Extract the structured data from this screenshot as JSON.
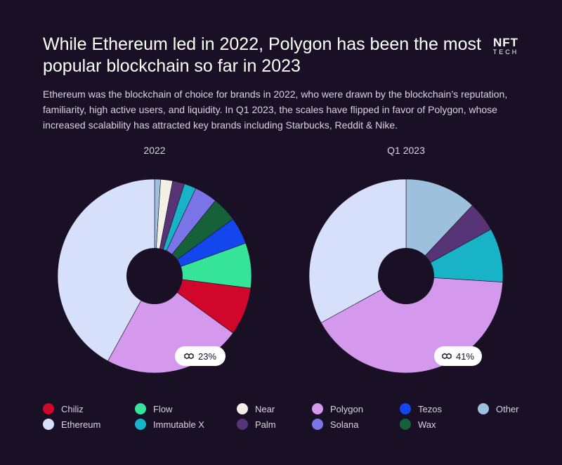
{
  "header": {
    "title": "While Ethereum led in 2022, Polygon has been the most popular blockchain so far in 2023",
    "logo_main": "NFT",
    "logo_sub": "TECH",
    "subtitle": "Ethereum was the blockchain of choice for brands in 2022, who were drawn by the blockchain’s reputation, familiarity, high active users, and liquidity.  In Q1 2023, the scales have flipped in favor of Polygon, whose increased scalability has attracted key brands including Starbucks, Reddit & Nike."
  },
  "colors": {
    "Chiliz": "#d1062b",
    "Flow": "#35e399",
    "Near": "#f2efe6",
    "Polygon": "#d499ec",
    "Tezos": "#1446ee",
    "Other": "#9dc1dd",
    "Ethereum": "#d6e0fa",
    "Immutable X": "#18b3c7",
    "Palm": "#573475",
    "Solana": "#7b74e6",
    "Wax": "#17613a"
  },
  "chart_data": [
    {
      "type": "pie",
      "title": "2022",
      "badge": "23%",
      "badge_icon": "polygon-icon",
      "slices": [
        {
          "label": "Other",
          "value": 1.0
        },
        {
          "label": "Near",
          "value": 2.0
        },
        {
          "label": "Palm",
          "value": 2.0
        },
        {
          "label": "Immutable X",
          "value": 2.0
        },
        {
          "label": "Solana",
          "value": 3.8
        },
        {
          "label": "Wax",
          "value": 4.2
        },
        {
          "label": "Tezos",
          "value": 4.5
        },
        {
          "label": "Flow",
          "value": 7.5
        },
        {
          "label": "Chiliz",
          "value": 8.0
        },
        {
          "label": "Polygon",
          "value": 23.0
        },
        {
          "label": "Ethereum",
          "value": 42.0
        }
      ]
    },
    {
      "type": "pie",
      "title": "Q1 2023",
      "badge": "41%",
      "badge_icon": "polygon-icon",
      "slices": [
        {
          "label": "Other",
          "value": 12.0
        },
        {
          "label": "Palm",
          "value": 5.0
        },
        {
          "label": "Immutable X",
          "value": 9.0
        },
        {
          "label": "Polygon",
          "value": 41.0
        },
        {
          "label": "Ethereum",
          "value": 33.0
        }
      ]
    }
  ],
  "legend": [
    "Chiliz",
    "Flow",
    "Near",
    "Polygon",
    "Tezos",
    "Other",
    "Ethereum",
    "Immutable X",
    "Palm",
    "Solana",
    "Wax"
  ]
}
